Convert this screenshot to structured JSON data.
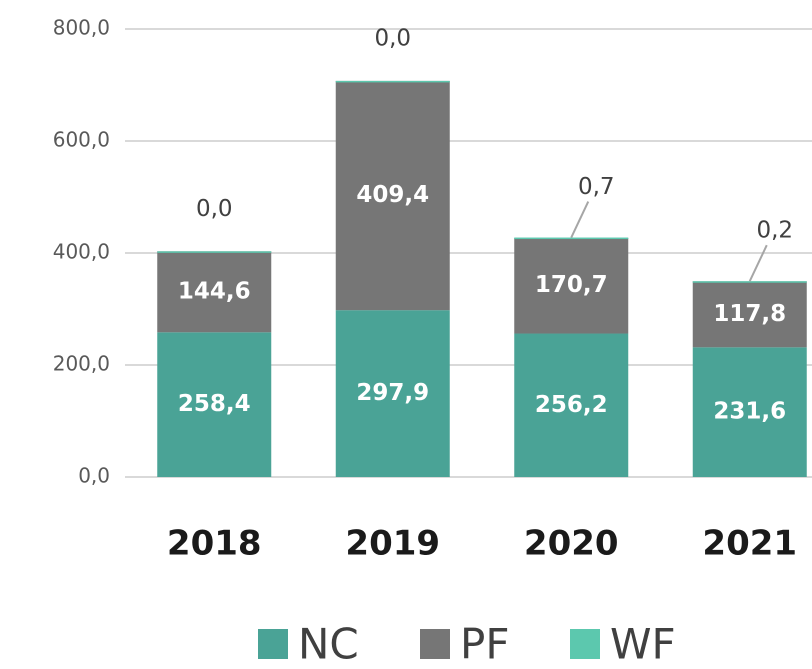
{
  "chart_data": {
    "type": "stacked_bar",
    "categories": [
      "2018",
      "2019",
      "2020",
      "2021"
    ],
    "series": [
      {
        "name": "NC",
        "color": "#4aa396",
        "values": [
          258.4,
          297.9,
          256.2,
          231.6
        ],
        "value_labels": [
          "258,4",
          "297,9",
          "256,2",
          "231,6"
        ]
      },
      {
        "name": "PF",
        "color": "#767676",
        "values": [
          144.6,
          409.4,
          170.7,
          117.8
        ],
        "value_labels": [
          "144,6",
          "409,4",
          "170,7",
          "117,8"
        ]
      },
      {
        "name": "WF",
        "color": "#5cc8ae",
        "values": [
          0.0,
          0.0,
          0.7,
          0.2
        ],
        "value_labels": [
          "0,0",
          "0,0",
          "0,7",
          "0,2"
        ]
      }
    ],
    "ylim": [
      0,
      800
    ],
    "yticks": [
      {
        "value": 0,
        "label": "0,0"
      },
      {
        "value": 200,
        "label": "200,0"
      },
      {
        "value": 400,
        "label": "400,0"
      },
      {
        "value": 600,
        "label": "600,0"
      },
      {
        "value": 800,
        "label": "800,0"
      }
    ],
    "grid": true,
    "legend": "bottom"
  }
}
